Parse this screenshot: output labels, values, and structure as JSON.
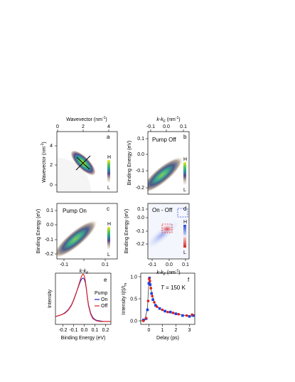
{
  "figure": {
    "panels": {
      "a": {
        "letter": "a",
        "xlabel_top": "Wavevector (nm",
        "xlabel_sup": "-1",
        "xlabel_close": ")",
        "ylabel": "Wavevector (nm",
        "ylabel_sup": "-1",
        "ylabel_close": ")",
        "xticks": [
          "0",
          "2",
          "4"
        ],
        "yticks": [
          "4",
          "2",
          "0"
        ],
        "colorbar_high": "H",
        "colorbar_low": "L"
      },
      "b": {
        "letter": "b",
        "label": "Pump Off",
        "xlabel_top": "k-k",
        "xlabel_sub": "F",
        "xlabel_unit": " (nm",
        "xlabel_sup": "-1",
        "xlabel_close": ")",
        "ylabel": "Binding Energy (eV)",
        "xticks": [
          "-0.1",
          "0.0",
          "0.1"
        ],
        "yticks": [
          "0.1",
          "0.0",
          "-0.1",
          "-0.2"
        ],
        "colorbar_high": "H",
        "colorbar_low": "L"
      },
      "c": {
        "letter": "c",
        "label": "Pump On",
        "xlabel": "k-k",
        "xlabel_sub": "F",
        "ylabel": "Binding Energy (eV)",
        "xticks": [
          "-0.1",
          "0",
          "0.1"
        ],
        "yticks": [
          "0.1",
          "0.0",
          "-0.1",
          "-0.2"
        ],
        "colorbar_high": "H",
        "colorbar_low": "L"
      },
      "d": {
        "letter": "d",
        "label": "On - Off",
        "xlabel": "k-k",
        "xlabel_sub": "F",
        "xlabel_unit": "(nm",
        "xlabel_sup": "-1",
        "xlabel_close": ")",
        "ylabel": "Binding Energy (eV)",
        "xticks": [
          "-0.1",
          "0.0",
          "0.1"
        ],
        "yticks": [
          "0.1",
          "0.0",
          "-0.1",
          "-0.2"
        ],
        "colorbar_high": "H",
        "colorbar_low": "L"
      },
      "e": {
        "letter": "e",
        "xlabel": "Binding Energy (eV)",
        "ylabel": "Intensity",
        "xticks": [
          "-0.2",
          "-0.1",
          "0.0",
          "0.1",
          "0.2"
        ],
        "legend_title": "Pump",
        "legend_on": "On",
        "legend_off": "Off"
      },
      "f": {
        "letter": "f",
        "annotation_T": "T",
        "annotation_value": " = 150 K",
        "xlabel": "Delay (ps)",
        "ylabel": "Intensity  I(t)/I",
        "ylabel_sub": "m",
        "xticks": [
          "0",
          "1",
          "2",
          "3"
        ],
        "yticks": [
          "0.0",
          "0.5",
          "1.0"
        ]
      }
    },
    "colors": {
      "on": "#1f1fd0",
      "off": "#e0201c",
      "marker_blue": "#1f3fe0",
      "marker_red": "#e0201c",
      "diff_positive": "#d42020",
      "diff_negative": "#2a4ad8",
      "box_red": "#e0201c",
      "box_blue": "#2a4ad8"
    }
  },
  "chart_data": [
    {
      "type": "line",
      "panel": "e",
      "xlabel": "Binding Energy (eV)",
      "ylabel": "Intensity",
      "xlim": [
        -0.27,
        0.25
      ],
      "ylim": [
        0,
        1.05
      ],
      "x": [
        -0.27,
        -0.24,
        -0.21,
        -0.18,
        -0.15,
        -0.12,
        -0.1,
        -0.08,
        -0.06,
        -0.04,
        -0.03,
        -0.02,
        -0.01,
        0.0,
        0.01,
        0.02,
        0.03,
        0.04,
        0.06,
        0.08,
        0.1,
        0.12,
        0.15,
        0.18,
        0.21,
        0.25
      ],
      "series": [
        {
          "name": "On",
          "values": [
            0.16,
            0.18,
            0.2,
            0.24,
            0.3,
            0.4,
            0.5,
            0.62,
            0.74,
            0.86,
            0.91,
            0.94,
            0.95,
            0.93,
            0.86,
            0.72,
            0.55,
            0.4,
            0.23,
            0.14,
            0.1,
            0.08,
            0.07,
            0.06,
            0.06,
            0.06
          ]
        },
        {
          "name": "Off",
          "values": [
            0.16,
            0.18,
            0.2,
            0.23,
            0.29,
            0.39,
            0.49,
            0.61,
            0.75,
            0.89,
            0.96,
            1.01,
            1.03,
            1.0,
            0.9,
            0.73,
            0.54,
            0.38,
            0.21,
            0.12,
            0.09,
            0.07,
            0.06,
            0.06,
            0.06,
            0.06
          ]
        }
      ]
    },
    {
      "type": "scatter",
      "panel": "f",
      "xlabel": "Delay (ps)",
      "ylabel": "Intensity I(t)/Im",
      "xlim": [
        -0.6,
        3.4
      ],
      "ylim": [
        -0.08,
        1.08
      ],
      "series": [
        {
          "name": "blue",
          "x": [
            -0.4,
            -0.2,
            -0.1,
            0.0,
            0.05,
            0.1,
            0.2,
            0.3,
            0.5,
            0.8,
            1.2,
            1.6,
            2.0,
            2.5,
            3.0,
            3.3
          ],
          "values": [
            0.02,
            0.05,
            0.25,
            0.85,
            0.97,
            0.82,
            0.62,
            0.48,
            0.35,
            0.28,
            0.22,
            0.2,
            0.16,
            0.12,
            0.1,
            0.12
          ]
        },
        {
          "name": "red",
          "x": [
            -0.4,
            -0.2,
            -0.05,
            0.02,
            0.08,
            0.15,
            0.25,
            0.4,
            0.6,
            1.0,
            1.4,
            1.8,
            2.2,
            2.8,
            3.2
          ],
          "values": [
            0.0,
            0.06,
            0.45,
            0.95,
            0.9,
            0.74,
            0.56,
            0.42,
            0.32,
            0.25,
            0.2,
            0.18,
            0.15,
            0.12,
            0.14
          ]
        },
        {
          "name": "fit",
          "x": [
            -0.6,
            -0.3,
            -0.1,
            0.0,
            0.05,
            0.1,
            0.2,
            0.35,
            0.5,
            0.8,
            1.2,
            1.6,
            2.0,
            2.5,
            3.0,
            3.4
          ],
          "values": [
            0.0,
            0.01,
            0.3,
            0.88,
            0.96,
            0.86,
            0.64,
            0.46,
            0.36,
            0.27,
            0.21,
            0.18,
            0.16,
            0.13,
            0.11,
            0.1
          ]
        }
      ]
    }
  ]
}
